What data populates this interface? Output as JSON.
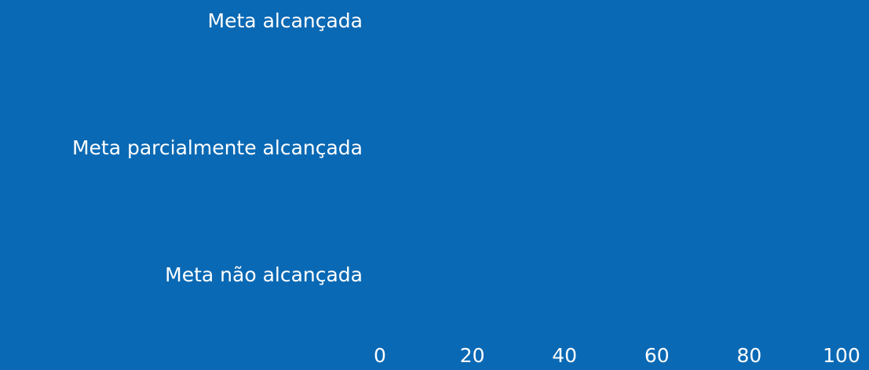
{
  "chart_data": {
    "type": "barh",
    "categories": [
      "Meta alcançada",
      "Meta parcialmente alcançada",
      "Meta não alcançada"
    ],
    "values": [
      0,
      0,
      0
    ],
    "color": "#ffffff",
    "xlim": [
      0,
      100
    ],
    "xticks": [
      0,
      20,
      40,
      60,
      80,
      100
    ]
  }
}
